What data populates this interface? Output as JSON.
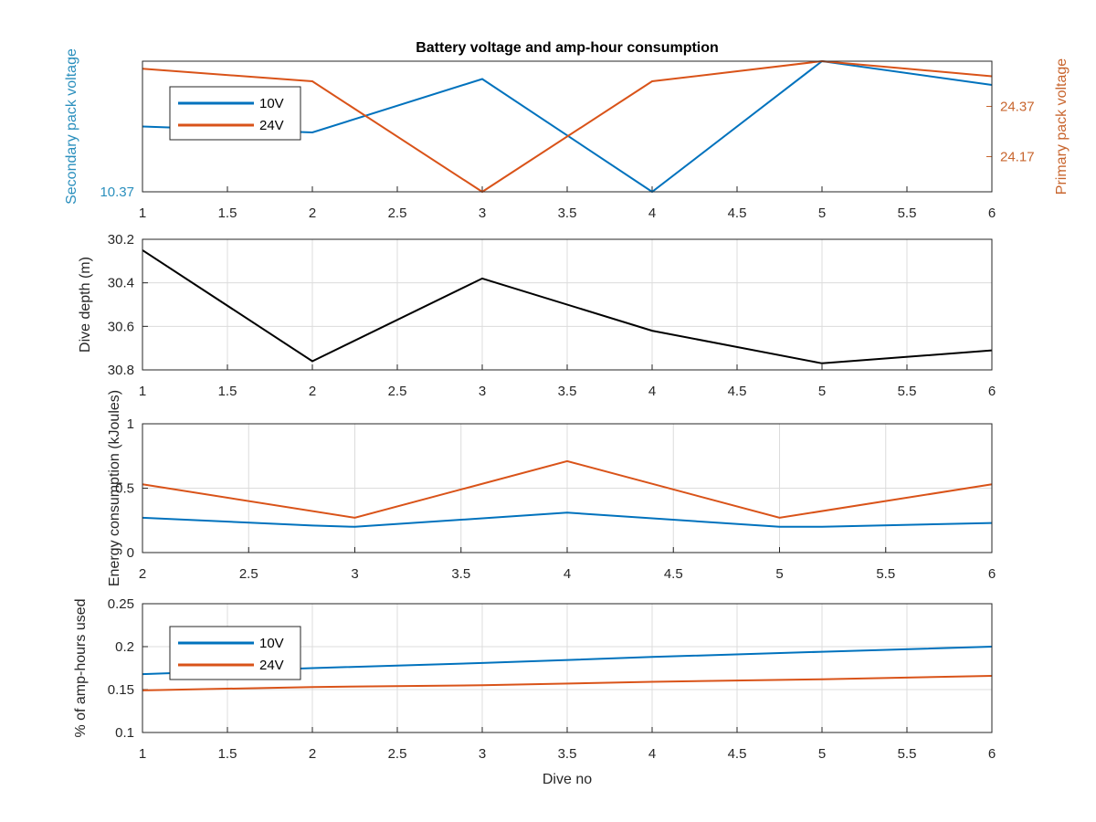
{
  "figure": {
    "title": "Battery voltage and amp-hour consumption"
  },
  "colors": {
    "blue": "#0072BD",
    "orange": "#D95319",
    "black": "#000000",
    "grid": "#dcdcdc",
    "axis": "#262626",
    "voltageBlue": "#2a8fbd",
    "voltageOrange": "#c8652e"
  },
  "chart_data": [
    {
      "type": "line",
      "title": "Battery voltage and amp-hour consumption",
      "xlim": [
        1,
        6
      ],
      "xticks": [
        1,
        1.5,
        2,
        2.5,
        3,
        3.5,
        4,
        4.5,
        5,
        5.5,
        6
      ],
      "grid": false,
      "legend": "top-left",
      "series": [
        {
          "name": "10V",
          "axis": "left",
          "color": "#0072BD",
          "x": [
            1,
            2,
            3,
            4,
            5,
            6
          ],
          "y": [
            10.381,
            10.38,
            10.389,
            10.37,
            10.392,
            10.388
          ]
        },
        {
          "name": "24V",
          "axis": "right",
          "color": "#D95319",
          "x": [
            1,
            2,
            3,
            4,
            5,
            6
          ],
          "y": [
            24.52,
            24.47,
            24.03,
            24.47,
            24.55,
            24.49
          ]
        }
      ],
      "ylabel_left": "Secondary pack voltage",
      "ylabel_right": "Primary pack voltage",
      "ylim_left": [
        10.37,
        10.392
      ],
      "ylim_right": [
        24.03,
        24.55
      ],
      "yticks_left": [
        "10.37"
      ],
      "yticks_right": [
        "24.17",
        "24.37"
      ]
    },
    {
      "type": "line",
      "xlim": [
        1,
        6
      ],
      "xticks": [
        1,
        1.5,
        2,
        2.5,
        3,
        3.5,
        4,
        4.5,
        5,
        5.5,
        6
      ],
      "ylim": [
        30.2,
        30.8
      ],
      "y_reversed": true,
      "yticks": [
        30.2,
        30.4,
        30.6,
        30.8
      ],
      "ylabel": "Dive depth (m)",
      "grid": true,
      "series": [
        {
          "color": "#000000",
          "x": [
            1,
            2,
            3,
            4,
            5,
            6
          ],
          "y": [
            30.25,
            30.76,
            30.38,
            30.62,
            30.77,
            30.71
          ]
        }
      ]
    },
    {
      "type": "line",
      "xlim": [
        2,
        6
      ],
      "xticks": [
        2,
        2.5,
        3,
        3.5,
        4,
        4.5,
        5,
        5.5,
        6
      ],
      "ylim": [
        0,
        1
      ],
      "yticks": [
        0,
        0.5,
        1
      ],
      "ylabel": "Energy consumption (kJoules)",
      "grid": true,
      "series": [
        {
          "color": "#D95319",
          "x": [
            2,
            3,
            4,
            5,
            6
          ],
          "y": [
            0.53,
            0.27,
            0.71,
            0.27,
            0.53
          ]
        },
        {
          "color": "#0072BD",
          "x": [
            2,
            2.8,
            3,
            4,
            5,
            5.2,
            6
          ],
          "y": [
            0.27,
            0.21,
            0.2,
            0.31,
            0.2,
            0.2,
            0.23
          ]
        }
      ]
    },
    {
      "type": "line",
      "xlim": [
        1,
        6
      ],
      "xticks": [
        1,
        1.5,
        2,
        2.5,
        3,
        3.5,
        4,
        4.5,
        5,
        5.5,
        6
      ],
      "ylim": [
        0.1,
        0.25
      ],
      "yticks": [
        0.1,
        0.15,
        0.2,
        0.25
      ],
      "ylabel": "% of amp-hours used",
      "xlabel": "Dive no",
      "grid": true,
      "legend": "top-left",
      "series": [
        {
          "name": "10V",
          "color": "#0072BD",
          "x": [
            1,
            2,
            3,
            4,
            5,
            6
          ],
          "y": [
            0.168,
            0.175,
            0.181,
            0.188,
            0.194,
            0.2
          ]
        },
        {
          "name": "24V",
          "color": "#D95319",
          "x": [
            1,
            2,
            3,
            4,
            5,
            6
          ],
          "y": [
            0.149,
            0.153,
            0.155,
            0.159,
            0.162,
            0.166
          ]
        }
      ]
    }
  ]
}
